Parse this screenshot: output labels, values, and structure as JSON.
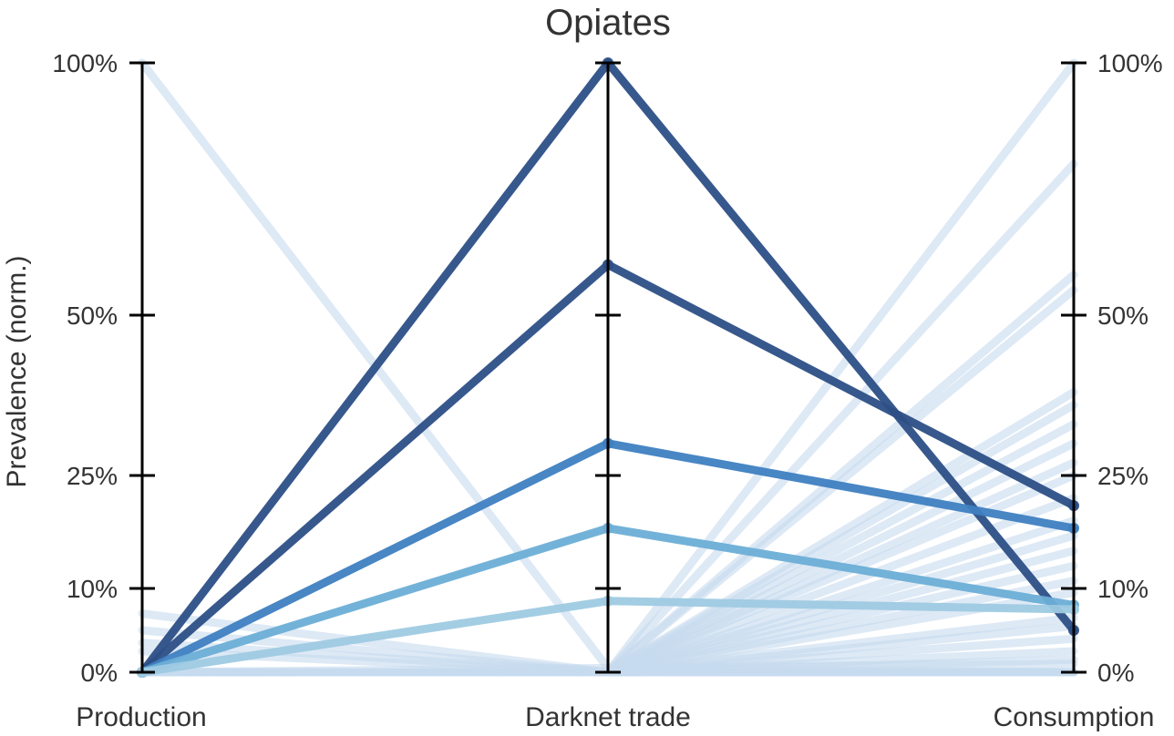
{
  "chart_data": {
    "type": "line",
    "subtype": "parallel-coordinates",
    "title": "Opiates",
    "ylabel": "Prevalence (norm.)",
    "axes": [
      "Production",
      "Darknet trade",
      "Consumption"
    ],
    "y_ticks": [
      "0%",
      "10%",
      "25%",
      "50%",
      "100%"
    ],
    "y_scale": "nonlinear (0%, 10%, 25%, 50%, 100% ticks)",
    "ylim": [
      0,
      100
    ],
    "tick_labels_left": true,
    "tick_labels_right": true,
    "colors": {
      "faint": "#c6dbef",
      "light": "#9ecae1",
      "mid": "#6baed6",
      "strong": "#3e7fc1",
      "dark": "#2c4f86",
      "axis": "#000000"
    },
    "series": [
      {
        "values": [
          0,
          100,
          5
        ],
        "color": "#2c4f86",
        "opacity": 0.95,
        "emphasis": true
      },
      {
        "values": [
          0,
          60,
          21
        ],
        "color": "#2c4f86",
        "opacity": 0.95,
        "emphasis": true
      },
      {
        "values": [
          0,
          30,
          18
        ],
        "color": "#3e7fc1",
        "opacity": 0.95,
        "emphasis": true
      },
      {
        "values": [
          0,
          18,
          8
        ],
        "color": "#6baed6",
        "opacity": 0.95,
        "emphasis": true
      },
      {
        "values": [
          0,
          8.5,
          7.5
        ],
        "color": "#9ecae1",
        "opacity": 0.95,
        "emphasis": true
      },
      {
        "values": [
          100,
          0.5,
          0
        ],
        "color": "#c6dbef",
        "opacity": 0.6
      },
      {
        "values": [
          7,
          0,
          0
        ],
        "color": "#c6dbef",
        "opacity": 0.6
      },
      {
        "values": [
          5,
          0,
          0
        ],
        "color": "#c6dbef",
        "opacity": 0.6
      },
      {
        "values": [
          3.5,
          0,
          0
        ],
        "color": "#c6dbef",
        "opacity": 0.6
      },
      {
        "values": [
          2.5,
          0,
          0
        ],
        "color": "#c6dbef",
        "opacity": 0.6
      },
      {
        "values": [
          0,
          0,
          100
        ],
        "color": "#c6dbef",
        "opacity": 0.6
      },
      {
        "values": [
          0,
          0,
          80
        ],
        "color": "#c6dbef",
        "opacity": 0.6
      },
      {
        "values": [
          0,
          0,
          58
        ],
        "color": "#c6dbef",
        "opacity": 0.6
      },
      {
        "values": [
          0,
          0,
          55
        ],
        "color": "#c6dbef",
        "opacity": 0.6
      },
      {
        "values": [
          0,
          0,
          38
        ],
        "color": "#c6dbef",
        "opacity": 0.6
      },
      {
        "values": [
          0,
          0,
          36
        ],
        "color": "#c6dbef",
        "opacity": 0.6
      },
      {
        "values": [
          0,
          0,
          33
        ],
        "color": "#c6dbef",
        "opacity": 0.6
      },
      {
        "values": [
          0,
          0,
          30
        ],
        "color": "#c6dbef",
        "opacity": 0.6
      },
      {
        "values": [
          0,
          0,
          27
        ],
        "color": "#c6dbef",
        "opacity": 0.6
      },
      {
        "values": [
          0,
          0,
          25
        ],
        "color": "#c6dbef",
        "opacity": 0.6
      },
      {
        "values": [
          0,
          0,
          22
        ],
        "color": "#c6dbef",
        "opacity": 0.6
      },
      {
        "values": [
          0,
          0,
          19
        ],
        "color": "#c6dbef",
        "opacity": 0.6
      },
      {
        "values": [
          0,
          0,
          17
        ],
        "color": "#c6dbef",
        "opacity": 0.6
      },
      {
        "values": [
          0,
          0,
          15
        ],
        "color": "#c6dbef",
        "opacity": 0.6
      },
      {
        "values": [
          0,
          0,
          13
        ],
        "color": "#c6dbef",
        "opacity": 0.6
      },
      {
        "values": [
          0,
          0,
          11
        ],
        "color": "#c6dbef",
        "opacity": 0.6
      },
      {
        "values": [
          0,
          0,
          9.5
        ],
        "color": "#c6dbef",
        "opacity": 0.6
      },
      {
        "values": [
          0,
          0,
          6.5
        ],
        "color": "#c6dbef",
        "opacity": 0.6
      },
      {
        "values": [
          0,
          0,
          5.5
        ],
        "color": "#c6dbef",
        "opacity": 0.6
      },
      {
        "values": [
          0,
          0,
          4
        ],
        "color": "#c6dbef",
        "opacity": 0.6
      },
      {
        "values": [
          0,
          0,
          2.5
        ],
        "color": "#c6dbef",
        "opacity": 0.6
      },
      {
        "values": [
          0,
          0,
          1.5
        ],
        "color": "#c6dbef",
        "opacity": 0.6
      },
      {
        "values": [
          0,
          0.5,
          1
        ],
        "color": "#c6dbef",
        "opacity": 0.6
      }
    ]
  }
}
